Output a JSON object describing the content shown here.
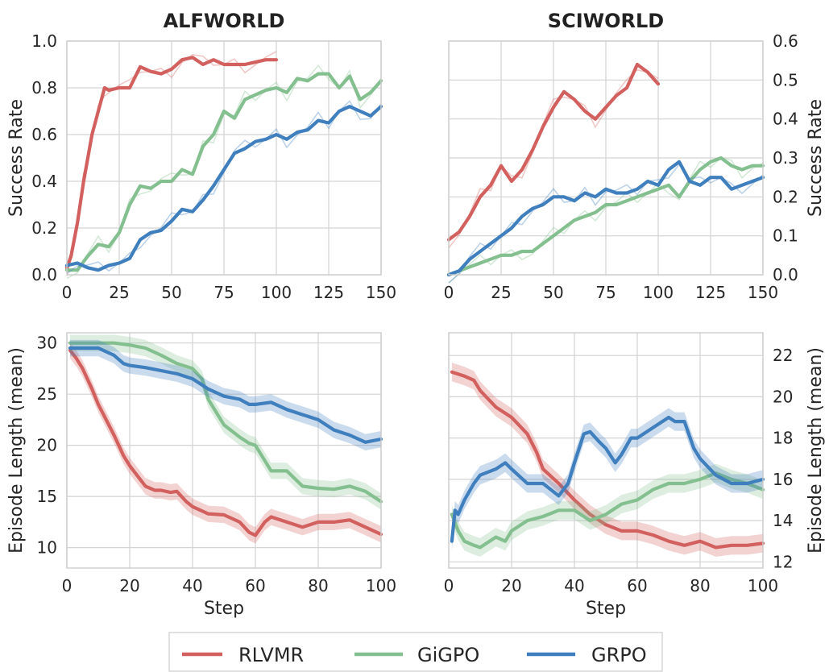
{
  "colors": {
    "RLVMR": "#d1605e",
    "GiGPO": "#84c08f",
    "GRPO": "#3f7fbd",
    "grid": "#d3d3d3",
    "frame": "#cccccc"
  },
  "legend": {
    "placement": "bottom-center",
    "entries": [
      "RLVMR",
      "GiGPO",
      "GRPO"
    ]
  },
  "chart_data": [
    {
      "type": "line",
      "title": "ALFWORLD",
      "xlabel": "",
      "ylabel": "Success Rate",
      "xlim": [
        0,
        150
      ],
      "ylim": [
        0,
        1.0
      ],
      "xticks": [
        0,
        25,
        50,
        75,
        100,
        125,
        150
      ],
      "yticks": [
        0.0,
        0.2,
        0.4,
        0.6,
        0.8,
        1.0
      ],
      "ytick_labels": [
        "0.0",
        "0.2",
        "0.4",
        "0.6",
        "0.8",
        "1.0"
      ],
      "yaxis_side": "left",
      "grid": true,
      "series": [
        {
          "name": "RLVMR",
          "x": [
            0,
            2,
            5,
            8,
            10,
            12,
            15,
            18,
            20,
            25,
            30,
            35,
            40,
            45,
            50,
            55,
            60,
            65,
            70,
            75,
            80,
            85,
            90,
            95,
            100
          ],
          "y": [
            0.03,
            0.08,
            0.22,
            0.4,
            0.5,
            0.6,
            0.7,
            0.8,
            0.79,
            0.8,
            0.8,
            0.89,
            0.87,
            0.86,
            0.88,
            0.92,
            0.93,
            0.9,
            0.92,
            0.9,
            0.9,
            0.9,
            0.91,
            0.92,
            0.92
          ]
        },
        {
          "name": "GiGPO",
          "x": [
            0,
            5,
            10,
            15,
            20,
            25,
            30,
            35,
            40,
            45,
            50,
            55,
            60,
            65,
            70,
            75,
            80,
            85,
            90,
            95,
            100,
            105,
            110,
            115,
            120,
            125,
            130,
            135,
            140,
            145,
            150
          ],
          "y": [
            0.02,
            0.02,
            0.08,
            0.13,
            0.12,
            0.18,
            0.3,
            0.38,
            0.37,
            0.4,
            0.4,
            0.45,
            0.43,
            0.55,
            0.6,
            0.7,
            0.67,
            0.75,
            0.77,
            0.79,
            0.8,
            0.78,
            0.84,
            0.83,
            0.86,
            0.86,
            0.8,
            0.85,
            0.75,
            0.78,
            0.83
          ]
        },
        {
          "name": "GRPO",
          "x": [
            0,
            5,
            10,
            15,
            20,
            25,
            30,
            35,
            40,
            45,
            50,
            55,
            60,
            65,
            70,
            75,
            80,
            85,
            90,
            95,
            100,
            105,
            110,
            115,
            120,
            125,
            130,
            135,
            140,
            145,
            150
          ],
          "y": [
            0.04,
            0.05,
            0.03,
            0.02,
            0.04,
            0.05,
            0.07,
            0.15,
            0.18,
            0.19,
            0.23,
            0.28,
            0.27,
            0.32,
            0.38,
            0.45,
            0.52,
            0.54,
            0.57,
            0.58,
            0.6,
            0.58,
            0.61,
            0.62,
            0.66,
            0.65,
            0.7,
            0.72,
            0.7,
            0.68,
            0.72
          ]
        }
      ]
    },
    {
      "type": "line",
      "title": "SCIWORLD",
      "xlabel": "",
      "ylabel": "Success Rate",
      "xlim": [
        0,
        150
      ],
      "ylim": [
        0,
        0.6
      ],
      "xticks": [
        0,
        25,
        50,
        75,
        100,
        125,
        150
      ],
      "yticks": [
        0.0,
        0.1,
        0.2,
        0.3,
        0.4,
        0.5,
        0.6
      ],
      "ytick_labels": [
        "0.0",
        "0.1",
        "0.2",
        "0.3",
        "0.4",
        "0.5",
        "0.6"
      ],
      "yaxis_side": "right",
      "grid": true,
      "series": [
        {
          "name": "RLVMR",
          "x": [
            0,
            5,
            10,
            15,
            20,
            25,
            30,
            35,
            40,
            45,
            50,
            55,
            60,
            65,
            70,
            75,
            80,
            85,
            90,
            95,
            100
          ],
          "y": [
            0.09,
            0.11,
            0.15,
            0.2,
            0.23,
            0.28,
            0.24,
            0.27,
            0.32,
            0.38,
            0.43,
            0.47,
            0.45,
            0.42,
            0.4,
            0.43,
            0.46,
            0.48,
            0.54,
            0.52,
            0.49
          ]
        },
        {
          "name": "GiGPO",
          "x": [
            0,
            5,
            10,
            15,
            20,
            25,
            30,
            35,
            40,
            45,
            50,
            55,
            60,
            65,
            70,
            75,
            80,
            85,
            90,
            95,
            100,
            105,
            110,
            115,
            120,
            125,
            130,
            135,
            140,
            145,
            150
          ],
          "y": [
            0.0,
            0.01,
            0.02,
            0.03,
            0.04,
            0.05,
            0.05,
            0.06,
            0.06,
            0.08,
            0.1,
            0.12,
            0.14,
            0.15,
            0.16,
            0.18,
            0.18,
            0.19,
            0.2,
            0.21,
            0.22,
            0.23,
            0.2,
            0.24,
            0.27,
            0.29,
            0.3,
            0.28,
            0.27,
            0.28,
            0.28
          ]
        },
        {
          "name": "GRPO",
          "x": [
            0,
            5,
            10,
            15,
            20,
            25,
            30,
            35,
            40,
            45,
            50,
            55,
            60,
            65,
            70,
            75,
            80,
            85,
            90,
            95,
            100,
            105,
            110,
            115,
            120,
            125,
            130,
            135,
            140,
            145,
            150
          ],
          "y": [
            0.0,
            0.01,
            0.04,
            0.06,
            0.08,
            0.1,
            0.12,
            0.15,
            0.17,
            0.18,
            0.2,
            0.2,
            0.19,
            0.21,
            0.2,
            0.22,
            0.21,
            0.21,
            0.22,
            0.24,
            0.23,
            0.27,
            0.29,
            0.24,
            0.23,
            0.25,
            0.25,
            0.22,
            0.23,
            0.24,
            0.25
          ]
        }
      ]
    },
    {
      "type": "line",
      "title": "",
      "xlabel": "Step",
      "ylabel": "Episode Length (mean)",
      "xlim": [
        0,
        100
      ],
      "ylim": [
        8,
        31
      ],
      "xticks": [
        0,
        20,
        40,
        60,
        80,
        100
      ],
      "yticks": [
        10,
        15,
        20,
        25,
        30
      ],
      "ytick_labels": [
        "10",
        "15",
        "20",
        "25",
        "30"
      ],
      "yaxis_side": "left",
      "grid": true,
      "band_halfwidth": 0.8,
      "series": [
        {
          "name": "RLVMR",
          "x": [
            1,
            3,
            5,
            8,
            10,
            12,
            15,
            18,
            20,
            23,
            25,
            28,
            30,
            33,
            35,
            38,
            40,
            45,
            50,
            55,
            58,
            60,
            63,
            65,
            70,
            75,
            80,
            85,
            90,
            95,
            100
          ],
          "y": [
            29.3,
            28.5,
            27.5,
            25.5,
            24.0,
            22.8,
            21.0,
            19.0,
            18.0,
            16.8,
            16.0,
            15.6,
            15.6,
            15.4,
            15.5,
            14.5,
            14.0,
            13.3,
            13.2,
            12.5,
            11.5,
            11.2,
            12.5,
            13.0,
            12.5,
            12.0,
            12.5,
            12.5,
            12.7,
            12.0,
            11.3
          ]
        },
        {
          "name": "GiGPO",
          "x": [
            1,
            5,
            10,
            15,
            20,
            25,
            30,
            35,
            40,
            43,
            45,
            48,
            50,
            55,
            58,
            60,
            63,
            65,
            70,
            75,
            80,
            85,
            90,
            95,
            100
          ],
          "y": [
            30.0,
            30.0,
            30.0,
            30.0,
            29.8,
            29.5,
            28.8,
            28.0,
            27.5,
            26.5,
            24.5,
            23.0,
            22.0,
            20.8,
            20.2,
            20.0,
            18.5,
            17.5,
            17.5,
            16.0,
            15.8,
            15.7,
            16.0,
            15.5,
            14.5
          ]
        },
        {
          "name": "GRPO",
          "x": [
            1,
            5,
            10,
            15,
            18,
            20,
            25,
            30,
            35,
            40,
            45,
            50,
            55,
            58,
            60,
            65,
            70,
            75,
            80,
            85,
            90,
            95,
            100
          ],
          "y": [
            29.5,
            29.5,
            29.5,
            28.8,
            28.0,
            27.8,
            27.6,
            27.3,
            27.0,
            26.5,
            25.5,
            24.8,
            24.5,
            24.0,
            24.0,
            24.2,
            23.5,
            23.0,
            22.5,
            21.5,
            21.0,
            20.3,
            20.6
          ]
        }
      ]
    },
    {
      "type": "line",
      "title": "",
      "xlabel": "Step",
      "ylabel": "Episode Length (mean)",
      "xlim": [
        0,
        100
      ],
      "ylim": [
        11.7,
        23.1
      ],
      "xticks": [
        0,
        20,
        40,
        60,
        80,
        100
      ],
      "yticks": [
        12,
        14,
        16,
        18,
        20,
        22
      ],
      "ytick_labels": [
        "12",
        "14",
        "16",
        "18",
        "20",
        "22"
      ],
      "yaxis_side": "right",
      "grid": true,
      "band_halfwidth": 0.45,
      "series": [
        {
          "name": "RLVMR",
          "x": [
            1,
            5,
            8,
            10,
            15,
            20,
            25,
            28,
            30,
            35,
            40,
            45,
            50,
            55,
            60,
            65,
            70,
            75,
            80,
            85,
            90,
            95,
            100
          ],
          "y": [
            21.2,
            21.0,
            20.8,
            20.3,
            19.5,
            19.0,
            18.2,
            17.3,
            16.5,
            15.8,
            15.0,
            14.3,
            13.8,
            13.5,
            13.5,
            13.3,
            13.0,
            12.8,
            13.0,
            12.7,
            12.8,
            12.8,
            12.9
          ]
        },
        {
          "name": "GiGPO",
          "x": [
            1,
            3,
            5,
            8,
            10,
            15,
            18,
            20,
            25,
            30,
            35,
            40,
            45,
            50,
            55,
            60,
            65,
            70,
            75,
            80,
            85,
            90,
            95,
            100
          ],
          "y": [
            14.3,
            13.5,
            13.0,
            12.8,
            12.7,
            13.2,
            13.0,
            13.5,
            14.0,
            14.2,
            14.5,
            14.5,
            14.0,
            14.3,
            14.8,
            15.0,
            15.5,
            15.8,
            15.8,
            16.0,
            16.3,
            16.0,
            15.8,
            15.5
          ]
        },
        {
          "name": "GRPO",
          "x": [
            1,
            2,
            3,
            5,
            8,
            10,
            15,
            18,
            20,
            25,
            30,
            35,
            38,
            40,
            43,
            45,
            48,
            50,
            53,
            55,
            58,
            60,
            65,
            70,
            72,
            75,
            78,
            80,
            85,
            90,
            95,
            100
          ],
          "y": [
            13.0,
            14.5,
            14.3,
            15.0,
            15.8,
            16.2,
            16.5,
            16.8,
            16.5,
            15.8,
            15.8,
            15.2,
            15.8,
            16.8,
            18.2,
            18.3,
            17.8,
            17.5,
            16.8,
            17.2,
            18.0,
            18.0,
            18.5,
            19.0,
            18.8,
            18.8,
            17.5,
            17.0,
            16.2,
            15.8,
            15.8,
            16.0
          ]
        }
      ]
    }
  ]
}
